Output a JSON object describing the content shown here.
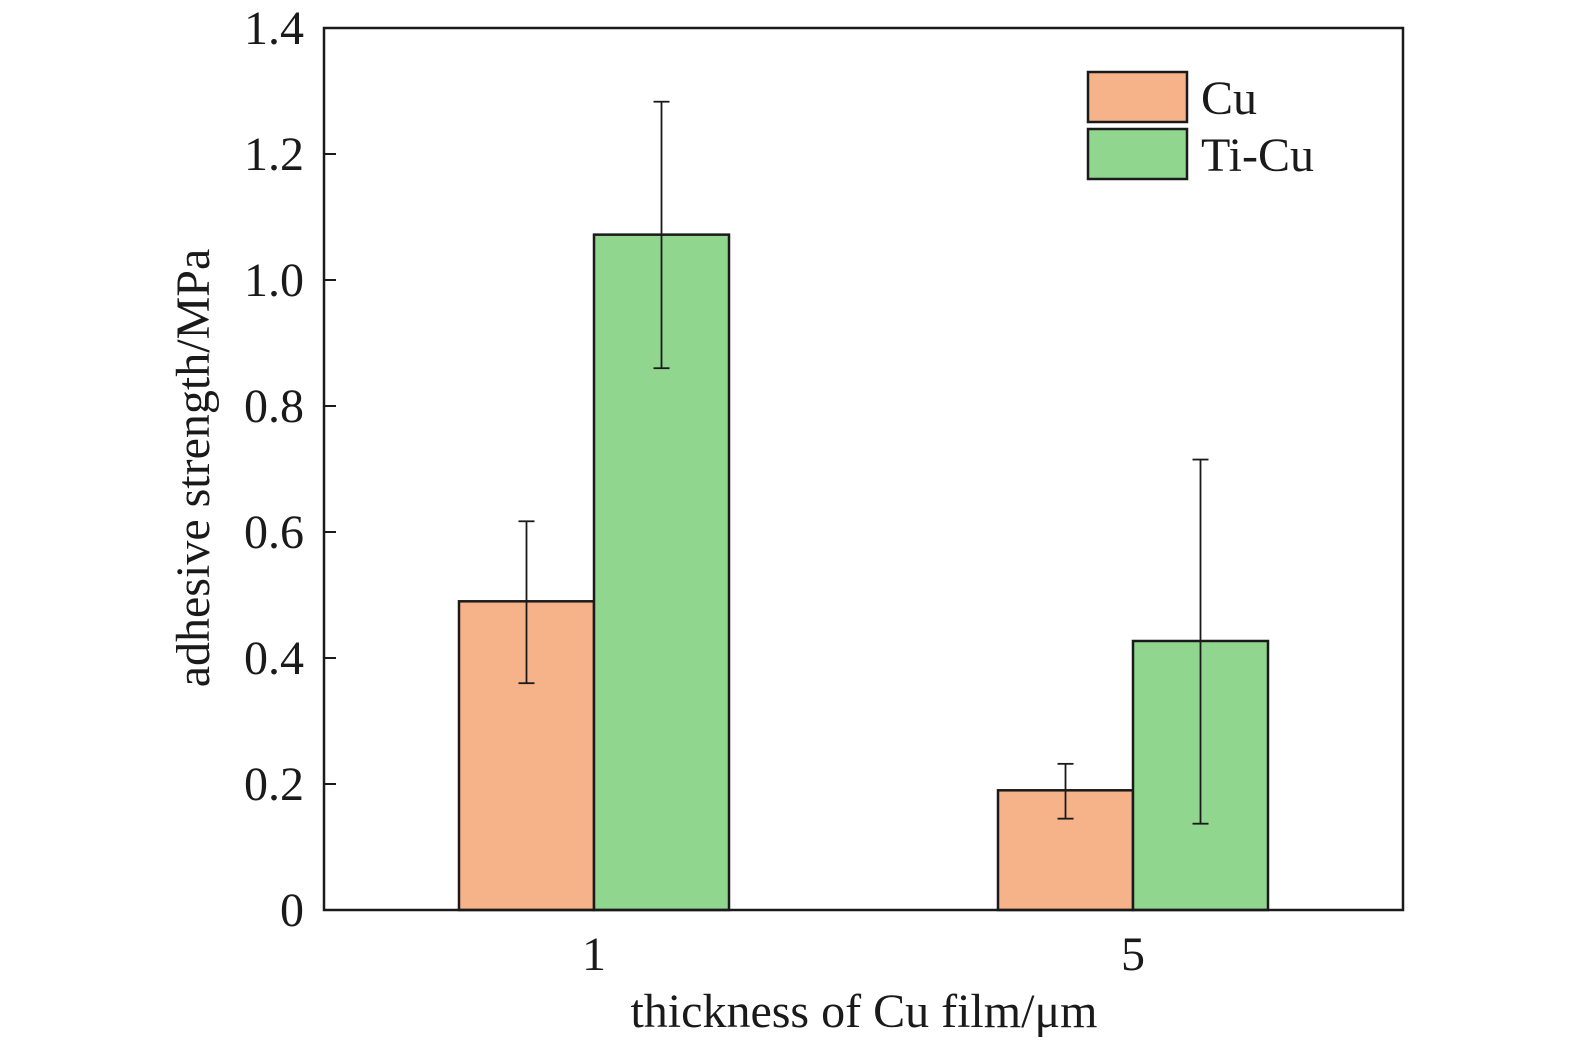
{
  "chart_data": {
    "type": "bar",
    "xlabel": "thickness of  Cu film/μm",
    "ylabel": "adhesive strength/MPa",
    "categories": [
      "1",
      "5"
    ],
    "series": [
      {
        "name": "Cu",
        "color": "#F6B389",
        "values": [
          0.49,
          0.19
        ],
        "error_low": [
          0.36,
          0.145
        ],
        "error_high": [
          0.617,
          0.232
        ]
      },
      {
        "name": "Ti-Cu",
        "color": "#90D68F",
        "values": [
          1.072,
          0.427
        ],
        "error_low": [
          0.86,
          0.137
        ],
        "error_high": [
          1.283,
          0.715
        ]
      }
    ],
    "ylim": [
      0,
      1.4
    ],
    "yticks": [
      0,
      0.2,
      0.4,
      0.6,
      0.8,
      1.0,
      1.2,
      1.4
    ],
    "ytick_labels": [
      "0",
      "0.2",
      "0.4",
      "0.6",
      "0.8",
      "1.0",
      "1.2",
      "1.4"
    ],
    "legend_position": "top-right",
    "grid": false
  }
}
